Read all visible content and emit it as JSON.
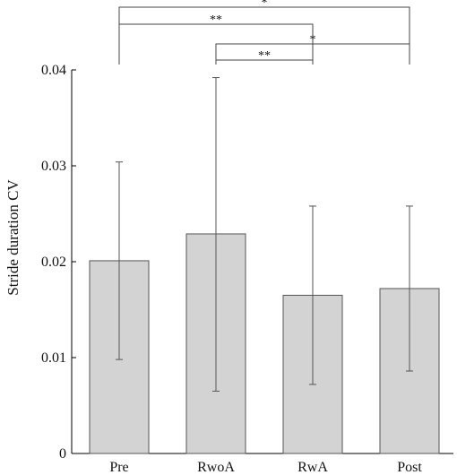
{
  "chart_data": {
    "type": "bar",
    "title": "",
    "xlabel": "",
    "ylabel": "Stride duration CV",
    "categories": [
      "Pre",
      "RwoA",
      "RwA",
      "Post"
    ],
    "values": [
      0.0201,
      0.0229,
      0.0165,
      0.0172
    ],
    "error_bars": [
      {
        "low": 0.0098,
        "high": 0.0304
      },
      {
        "low": 0.0065,
        "high": 0.0392
      },
      {
        "low": 0.0072,
        "high": 0.0258
      },
      {
        "low": 0.0086,
        "high": 0.0258
      }
    ],
    "ylim": [
      0,
      0.04
    ],
    "yticks": [
      "0",
      "0.01",
      "0.02",
      "0.03",
      "0.04"
    ],
    "grid": false,
    "significance": [
      {
        "from": "Pre",
        "to": "Post",
        "label": "*"
      },
      {
        "from": "Pre",
        "to": "RwA",
        "label": "**"
      },
      {
        "from": "RwoA",
        "to": "Post",
        "label": "*"
      },
      {
        "from": "RwoA",
        "to": "RwA",
        "label": "**"
      }
    ],
    "colors": {
      "bar_fill": "#d3d3d3",
      "bar_stroke": "#555555",
      "axis": "#000000"
    }
  }
}
